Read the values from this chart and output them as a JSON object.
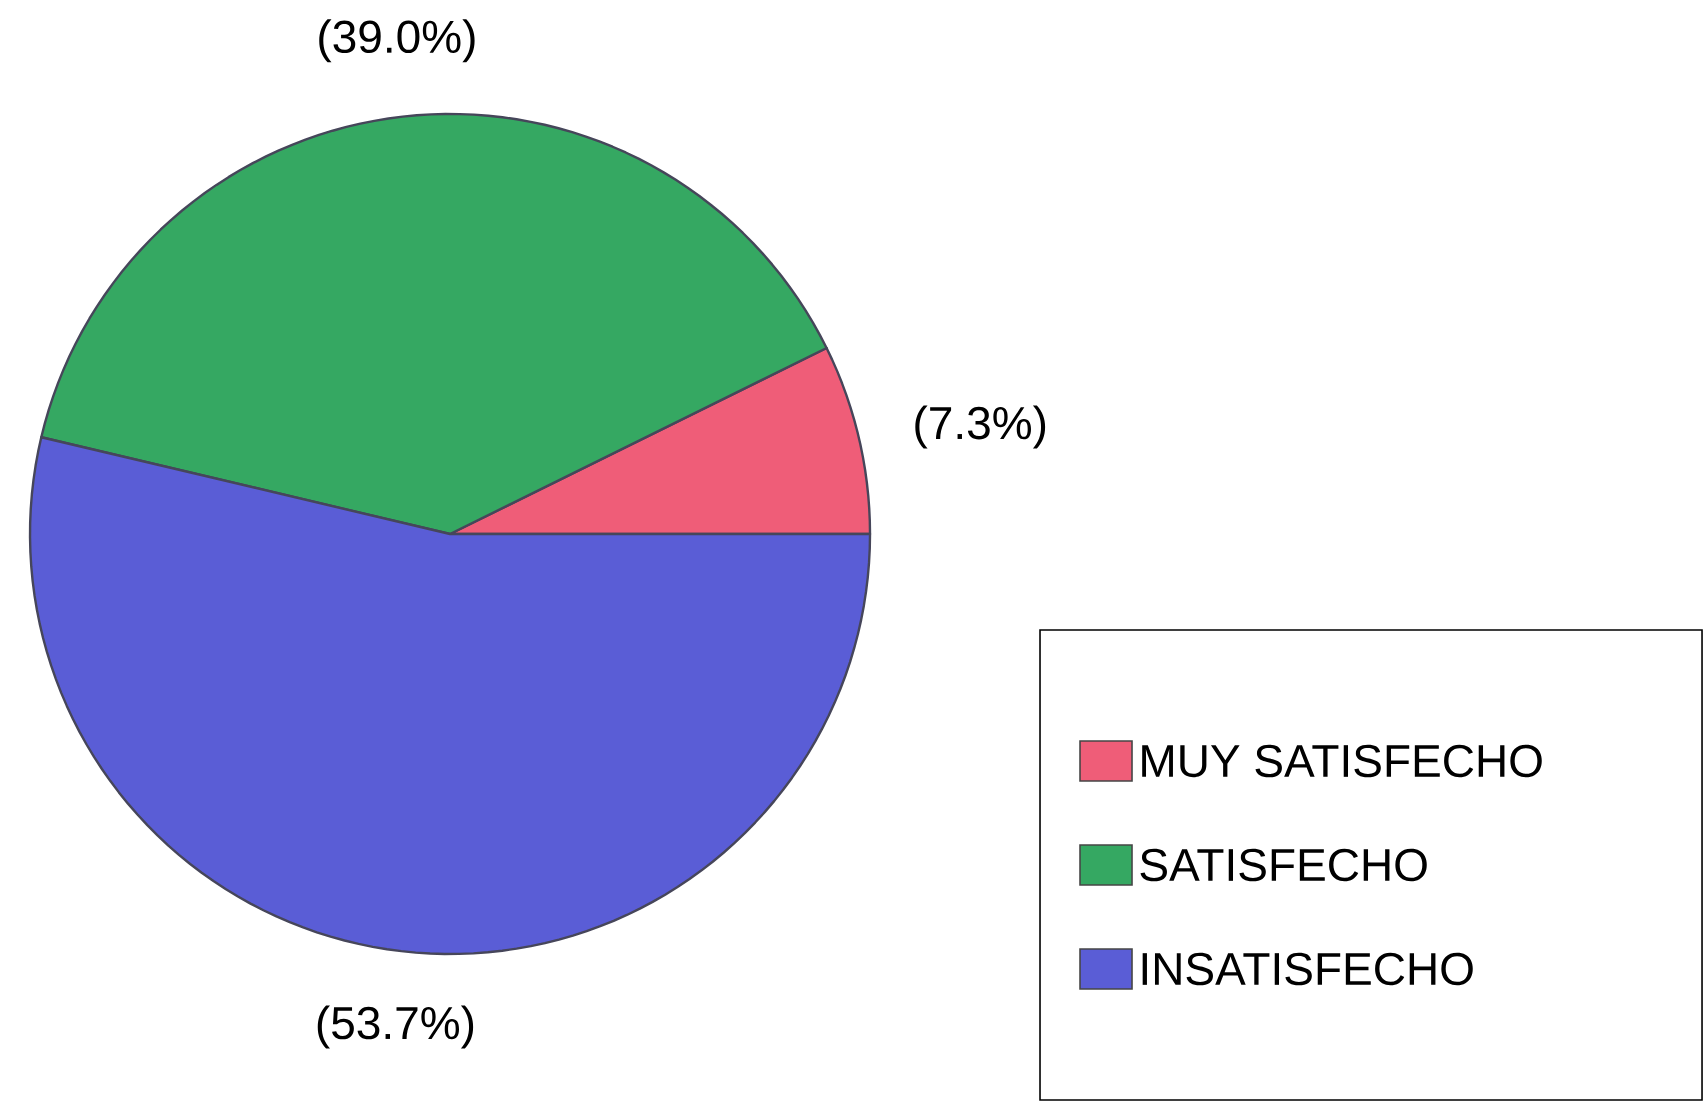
{
  "chart_data": {
    "type": "pie",
    "categories": [
      "MUY SATISFECHO",
      "SATISFECHO",
      "INSATISFECHO"
    ],
    "values": [
      7.3,
      39.0,
      53.7
    ],
    "colors": [
      "#ef5d78",
      "#35a862",
      "#5a5dd6"
    ],
    "value_labels": [
      "(7.3%)",
      "(39.0%)",
      "(53.7%)"
    ],
    "legend": "bottom right"
  }
}
